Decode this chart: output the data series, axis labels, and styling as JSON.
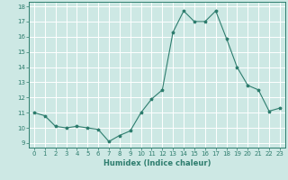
{
  "x": [
    0,
    1,
    2,
    3,
    4,
    5,
    6,
    7,
    8,
    9,
    10,
    11,
    12,
    13,
    14,
    15,
    16,
    17,
    18,
    19,
    20,
    21,
    22,
    23
  ],
  "y": [
    11.0,
    10.8,
    10.1,
    10.0,
    10.1,
    10.0,
    9.9,
    9.1,
    9.5,
    9.8,
    11.0,
    11.9,
    12.5,
    16.3,
    17.7,
    17.0,
    17.0,
    17.7,
    15.9,
    14.0,
    12.8,
    12.5,
    11.1,
    11.3
  ],
  "xlabel": "Humidex (Indice chaleur)",
  "xlim_min": -0.5,
  "xlim_max": 23.5,
  "ylim_min": 8.7,
  "ylim_max": 18.3,
  "yticks": [
    9,
    10,
    11,
    12,
    13,
    14,
    15,
    16,
    17,
    18
  ],
  "xticks": [
    0,
    1,
    2,
    3,
    4,
    5,
    6,
    7,
    8,
    9,
    10,
    11,
    12,
    13,
    14,
    15,
    16,
    17,
    18,
    19,
    20,
    21,
    22,
    23
  ],
  "line_color": "#2e7d6e",
  "marker": "*",
  "bg_color": "#cde8e4",
  "grid_color": "#ffffff",
  "tick_fontsize": 5.0,
  "xlabel_fontsize": 6.0,
  "linewidth": 0.8,
  "markersize": 2.5
}
